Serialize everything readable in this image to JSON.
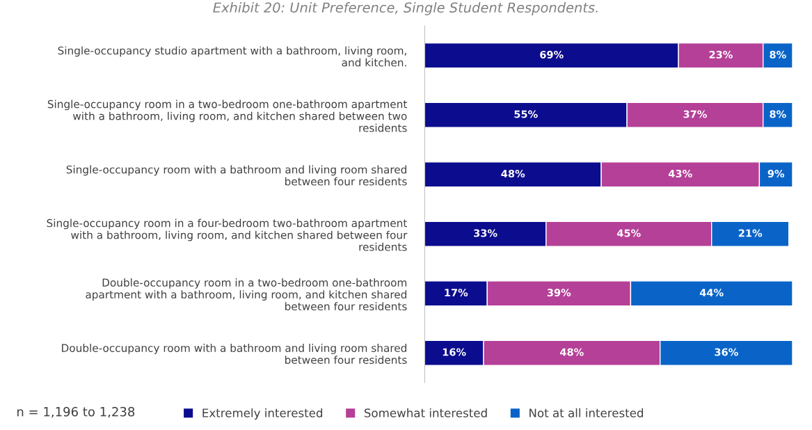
{
  "chart_data": {
    "type": "bar",
    "orientation": "horizontal",
    "stacked": true,
    "legend": "bottom",
    "grid": false,
    "title": "Exhibit 20: Unit Preference, Single Student Respondents.",
    "categories": [
      "Single-occupancy studio apartment with a bathroom, living room,\nand kitchen.",
      "Single-occupancy room in a two-bedroom one-bathroom apartment\nwith a bathroom, living room, and kitchen shared between two\nresidents",
      "Single-occupancy room with a bathroom and living room shared\nbetween four residents",
      "Single-occupancy room in a four-bedroom two-bathroom apartment\nwith a bathroom, living room, and kitchen shared between four\nresidents",
      "Double-occupancy room in a two-bedroom one-bathroom\napartment with a bathroom, living room, and kitchen shared\nbetween four residents",
      "Double-occupancy room with a bathroom and living room shared\nbetween four residents"
    ],
    "series": [
      {
        "name": "Extremely interested",
        "color": "#0c0c8f",
        "values": [
          69,
          55,
          48,
          33,
          17,
          16
        ],
        "value_labels": [
          "69%",
          "55%",
          "48%",
          "33%",
          "17%",
          "16%"
        ]
      },
      {
        "name": "Somewhat interested",
        "color": "#b54097",
        "values": [
          23,
          37,
          43,
          45,
          39,
          48
        ],
        "value_labels": [
          "23%",
          "37%",
          "43%",
          "45%",
          "39%",
          "48%"
        ]
      },
      {
        "name": "Not at all interested",
        "color": "#0a64c8",
        "values": [
          8,
          8,
          9,
          21,
          44,
          36
        ],
        "value_labels": [
          "8%",
          "8%",
          "9%",
          "21%",
          "44%",
          "36%"
        ]
      }
    ],
    "annotations": [
      "n = 1,196 to 1,238"
    ]
  }
}
